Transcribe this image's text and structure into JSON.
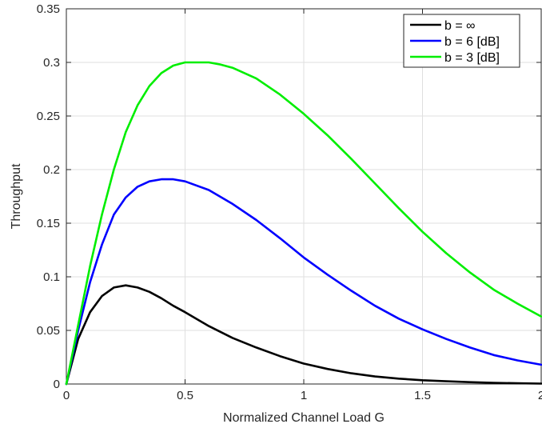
{
  "chart_data": {
    "type": "line",
    "title": "",
    "xlabel": "Normalized Channel Load G",
    "ylabel": "Throughput",
    "xlim": [
      0,
      2
    ],
    "ylim": [
      0,
      0.35
    ],
    "xticks": [
      0,
      0.5,
      1,
      1.5,
      2
    ],
    "xtick_labels": [
      "0",
      "0.5",
      "1",
      "1.5",
      "2"
    ],
    "yticks": [
      0,
      0.05,
      0.1,
      0.15,
      0.2,
      0.25,
      0.3,
      0.35
    ],
    "ytick_labels": [
      "0",
      "0.05",
      "0.1",
      "0.15",
      "0.2",
      "0.25",
      "0.3",
      "0.35"
    ],
    "grid": true,
    "legend_position": "top-right",
    "series": [
      {
        "name": "b = ∞",
        "color": "#000000",
        "x": [
          0,
          0.05,
          0.1,
          0.15,
          0.2,
          0.25,
          0.3,
          0.35,
          0.4,
          0.45,
          0.5,
          0.6,
          0.7,
          0.8,
          0.9,
          1.0,
          1.1,
          1.2,
          1.3,
          1.4,
          1.5,
          1.6,
          1.7,
          1.8,
          1.9,
          2.0
        ],
        "y": [
          0,
          0.042,
          0.067,
          0.082,
          0.09,
          0.092,
          0.09,
          0.086,
          0.08,
          0.073,
          0.067,
          0.054,
          0.043,
          0.034,
          0.026,
          0.019,
          0.014,
          0.01,
          0.007,
          0.005,
          0.0035,
          0.0025,
          0.0017,
          0.0011,
          0.0007,
          0.0004
        ]
      },
      {
        "name": "b = 6 [dB]",
        "color": "#0000ff",
        "x": [
          0,
          0.05,
          0.1,
          0.15,
          0.2,
          0.25,
          0.3,
          0.35,
          0.4,
          0.45,
          0.5,
          0.6,
          0.7,
          0.8,
          0.9,
          1.0,
          1.1,
          1.2,
          1.3,
          1.4,
          1.5,
          1.6,
          1.7,
          1.8,
          1.9,
          2.0
        ],
        "y": [
          0,
          0.05,
          0.095,
          0.13,
          0.158,
          0.174,
          0.184,
          0.189,
          0.191,
          0.191,
          0.189,
          0.181,
          0.168,
          0.153,
          0.136,
          0.118,
          0.102,
          0.087,
          0.073,
          0.061,
          0.051,
          0.042,
          0.034,
          0.027,
          0.022,
          0.018
        ]
      },
      {
        "name": "b = 3 [dB]",
        "color": "#00ee00",
        "x": [
          0,
          0.05,
          0.1,
          0.15,
          0.2,
          0.25,
          0.3,
          0.35,
          0.4,
          0.45,
          0.5,
          0.55,
          0.6,
          0.65,
          0.7,
          0.8,
          0.9,
          1.0,
          1.1,
          1.2,
          1.3,
          1.4,
          1.5,
          1.6,
          1.7,
          1.8,
          1.9,
          2.0
        ],
        "y": [
          0,
          0.055,
          0.11,
          0.158,
          0.2,
          0.235,
          0.26,
          0.278,
          0.29,
          0.297,
          0.3,
          0.3,
          0.3,
          0.298,
          0.295,
          0.285,
          0.27,
          0.252,
          0.232,
          0.21,
          0.187,
          0.164,
          0.142,
          0.122,
          0.104,
          0.088,
          0.075,
          0.063
        ]
      }
    ]
  }
}
